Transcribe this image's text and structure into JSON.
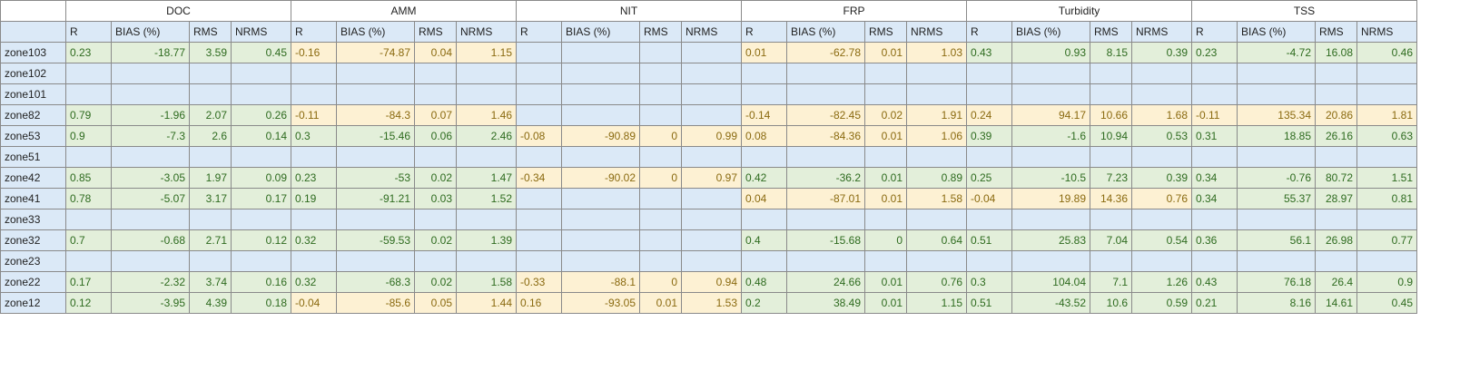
{
  "groups": [
    "DOC",
    "AMM",
    "NIT",
    "FRP",
    "Turbidity",
    "TSS"
  ],
  "subheaders": [
    "R",
    "BIAS (%)",
    "RMS",
    "NRMS"
  ],
  "rows": [
    {
      "zone": "zone103",
      "cells": [
        {
          "c": "g",
          "v": [
            "0.23",
            "-18.77",
            "3.59",
            "0.45"
          ]
        },
        {
          "c": "y",
          "v": [
            "-0.16",
            "-74.87",
            "0.04",
            "1.15"
          ]
        },
        {
          "c": "b",
          "v": [
            "",
            "",
            "",
            ""
          ]
        },
        {
          "c": "y",
          "v": [
            "0.01",
            "-62.78",
            "0.01",
            "1.03"
          ]
        },
        {
          "c": "g",
          "v": [
            "0.43",
            "0.93",
            "8.15",
            "0.39"
          ]
        },
        {
          "c": "g",
          "v": [
            "0.23",
            "-4.72",
            "16.08",
            "0.46"
          ]
        }
      ]
    },
    {
      "zone": "zone102",
      "cells": [
        {
          "c": "b",
          "v": [
            "",
            "",
            "",
            ""
          ]
        },
        {
          "c": "b",
          "v": [
            "",
            "",
            "",
            ""
          ]
        },
        {
          "c": "b",
          "v": [
            "",
            "",
            "",
            ""
          ]
        },
        {
          "c": "b",
          "v": [
            "",
            "",
            "",
            ""
          ]
        },
        {
          "c": "b",
          "v": [
            "",
            "",
            "",
            ""
          ]
        },
        {
          "c": "b",
          "v": [
            "",
            "",
            "",
            ""
          ]
        }
      ]
    },
    {
      "zone": "zone101",
      "cells": [
        {
          "c": "b",
          "v": [
            "",
            "",
            "",
            ""
          ]
        },
        {
          "c": "b",
          "v": [
            "",
            "",
            "",
            ""
          ]
        },
        {
          "c": "b",
          "v": [
            "",
            "",
            "",
            ""
          ]
        },
        {
          "c": "b",
          "v": [
            "",
            "",
            "",
            ""
          ]
        },
        {
          "c": "b",
          "v": [
            "",
            "",
            "",
            ""
          ]
        },
        {
          "c": "b",
          "v": [
            "",
            "",
            "",
            ""
          ]
        }
      ]
    },
    {
      "zone": "zone82",
      "cells": [
        {
          "c": "g",
          "v": [
            "0.79",
            "-1.96",
            "2.07",
            "0.26"
          ]
        },
        {
          "c": "y",
          "v": [
            "-0.11",
            "-84.3",
            "0.07",
            "1.46"
          ]
        },
        {
          "c": "b",
          "v": [
            "",
            "",
            "",
            ""
          ]
        },
        {
          "c": "y",
          "v": [
            "-0.14",
            "-82.45",
            "0.02",
            "1.91"
          ]
        },
        {
          "c": "y",
          "v": [
            "0.24",
            "94.17",
            "10.66",
            "1.68"
          ]
        },
        {
          "c": "y",
          "v": [
            "-0.11",
            "135.34",
            "20.86",
            "1.81"
          ]
        }
      ]
    },
    {
      "zone": "zone53",
      "cells": [
        {
          "c": "g",
          "v": [
            "0.9",
            "-7.3",
            "2.6",
            "0.14"
          ]
        },
        {
          "c": "g",
          "v": [
            "0.3",
            "-15.46",
            "0.06",
            "2.46"
          ]
        },
        {
          "c": "y",
          "v": [
            "-0.08",
            "-90.89",
            "0",
            "0.99"
          ]
        },
        {
          "c": "y",
          "v": [
            "0.08",
            "-84.36",
            "0.01",
            "1.06"
          ]
        },
        {
          "c": "g",
          "v": [
            "0.39",
            "-1.6",
            "10.94",
            "0.53"
          ]
        },
        {
          "c": "g",
          "v": [
            "0.31",
            "18.85",
            "26.16",
            "0.63"
          ]
        }
      ]
    },
    {
      "zone": "zone51",
      "cells": [
        {
          "c": "b",
          "v": [
            "",
            "",
            "",
            ""
          ]
        },
        {
          "c": "b",
          "v": [
            "",
            "",
            "",
            ""
          ]
        },
        {
          "c": "b",
          "v": [
            "",
            "",
            "",
            ""
          ]
        },
        {
          "c": "b",
          "v": [
            "",
            "",
            "",
            ""
          ]
        },
        {
          "c": "b",
          "v": [
            "",
            "",
            "",
            ""
          ]
        },
        {
          "c": "b",
          "v": [
            "",
            "",
            "",
            ""
          ]
        }
      ]
    },
    {
      "zone": "zone42",
      "cells": [
        {
          "c": "g",
          "v": [
            "0.85",
            "-3.05",
            "1.97",
            "0.09"
          ]
        },
        {
          "c": "g",
          "v": [
            "0.23",
            "-53",
            "0.02",
            "1.47"
          ]
        },
        {
          "c": "y",
          "v": [
            "-0.34",
            "-90.02",
            "0",
            "0.97"
          ]
        },
        {
          "c": "g",
          "v": [
            "0.42",
            "-36.2",
            "0.01",
            "0.89"
          ]
        },
        {
          "c": "g",
          "v": [
            "0.25",
            "-10.5",
            "7.23",
            "0.39"
          ]
        },
        {
          "c": "g",
          "v": [
            "0.34",
            "-0.76",
            "80.72",
            "1.51"
          ]
        }
      ]
    },
    {
      "zone": "zone41",
      "cells": [
        {
          "c": "g",
          "v": [
            "0.78",
            "-5.07",
            "3.17",
            "0.17"
          ]
        },
        {
          "c": "g",
          "v": [
            "0.19",
            "-91.21",
            "0.03",
            "1.52"
          ]
        },
        {
          "c": "b",
          "v": [
            "",
            "",
            "",
            ""
          ]
        },
        {
          "c": "y",
          "v": [
            "0.04",
            "-87.01",
            "0.01",
            "1.58"
          ]
        },
        {
          "c": "y",
          "v": [
            "-0.04",
            "19.89",
            "14.36",
            "0.76"
          ]
        },
        {
          "c": "g",
          "v": [
            "0.34",
            "55.37",
            "28.97",
            "0.81"
          ]
        }
      ]
    },
    {
      "zone": "zone33",
      "cells": [
        {
          "c": "b",
          "v": [
            "",
            "",
            "",
            ""
          ]
        },
        {
          "c": "b",
          "v": [
            "",
            "",
            "",
            ""
          ]
        },
        {
          "c": "b",
          "v": [
            "",
            "",
            "",
            ""
          ]
        },
        {
          "c": "b",
          "v": [
            "",
            "",
            "",
            ""
          ]
        },
        {
          "c": "b",
          "v": [
            "",
            "",
            "",
            ""
          ]
        },
        {
          "c": "b",
          "v": [
            "",
            "",
            "",
            ""
          ]
        }
      ]
    },
    {
      "zone": "zone32",
      "cells": [
        {
          "c": "g",
          "v": [
            "0.7",
            "-0.68",
            "2.71",
            "0.12"
          ]
        },
        {
          "c": "g",
          "v": [
            "0.32",
            "-59.53",
            "0.02",
            "1.39"
          ]
        },
        {
          "c": "b",
          "v": [
            "",
            "",
            "",
            ""
          ]
        },
        {
          "c": "g",
          "v": [
            "0.4",
            "-15.68",
            "0",
            "0.64"
          ]
        },
        {
          "c": "g",
          "v": [
            "0.51",
            "25.83",
            "7.04",
            "0.54"
          ]
        },
        {
          "c": "g",
          "v": [
            "0.36",
            "56.1",
            "26.98",
            "0.77"
          ]
        }
      ]
    },
    {
      "zone": "zone23",
      "cells": [
        {
          "c": "b",
          "v": [
            "",
            "",
            "",
            ""
          ]
        },
        {
          "c": "b",
          "v": [
            "",
            "",
            "",
            ""
          ]
        },
        {
          "c": "b",
          "v": [
            "",
            "",
            "",
            ""
          ]
        },
        {
          "c": "b",
          "v": [
            "",
            "",
            "",
            ""
          ]
        },
        {
          "c": "b",
          "v": [
            "",
            "",
            "",
            ""
          ]
        },
        {
          "c": "b",
          "v": [
            "",
            "",
            "",
            ""
          ]
        }
      ]
    },
    {
      "zone": "zone22",
      "cells": [
        {
          "c": "g",
          "v": [
            "0.17",
            "-2.32",
            "3.74",
            "0.16"
          ]
        },
        {
          "c": "g",
          "v": [
            "0.32",
            "-68.3",
            "0.02",
            "1.58"
          ]
        },
        {
          "c": "y",
          "v": [
            "-0.33",
            "-88.1",
            "0",
            "0.94"
          ]
        },
        {
          "c": "g",
          "v": [
            "0.48",
            "24.66",
            "0.01",
            "0.76"
          ]
        },
        {
          "c": "g",
          "v": [
            "0.3",
            "104.04",
            "7.1",
            "1.26"
          ]
        },
        {
          "c": "g",
          "v": [
            "0.43",
            "76.18",
            "26.4",
            "0.9"
          ]
        }
      ]
    },
    {
      "zone": "zone12",
      "cells": [
        {
          "c": "g",
          "v": [
            "0.12",
            "-3.95",
            "4.39",
            "0.18"
          ]
        },
        {
          "c": "y",
          "v": [
            "-0.04",
            "-85.6",
            "0.05",
            "1.44"
          ]
        },
        {
          "c": "y",
          "v": [
            "0.16",
            "-93.05",
            "0.01",
            "1.53"
          ]
        },
        {
          "c": "g",
          "v": [
            "0.2",
            "38.49",
            "0.01",
            "1.15"
          ]
        },
        {
          "c": "g",
          "v": [
            "0.51",
            "-43.52",
            "10.6",
            "0.59"
          ]
        },
        {
          "c": "g",
          "v": [
            "0.21",
            "8.16",
            "14.61",
            "0.45"
          ]
        }
      ]
    }
  ]
}
